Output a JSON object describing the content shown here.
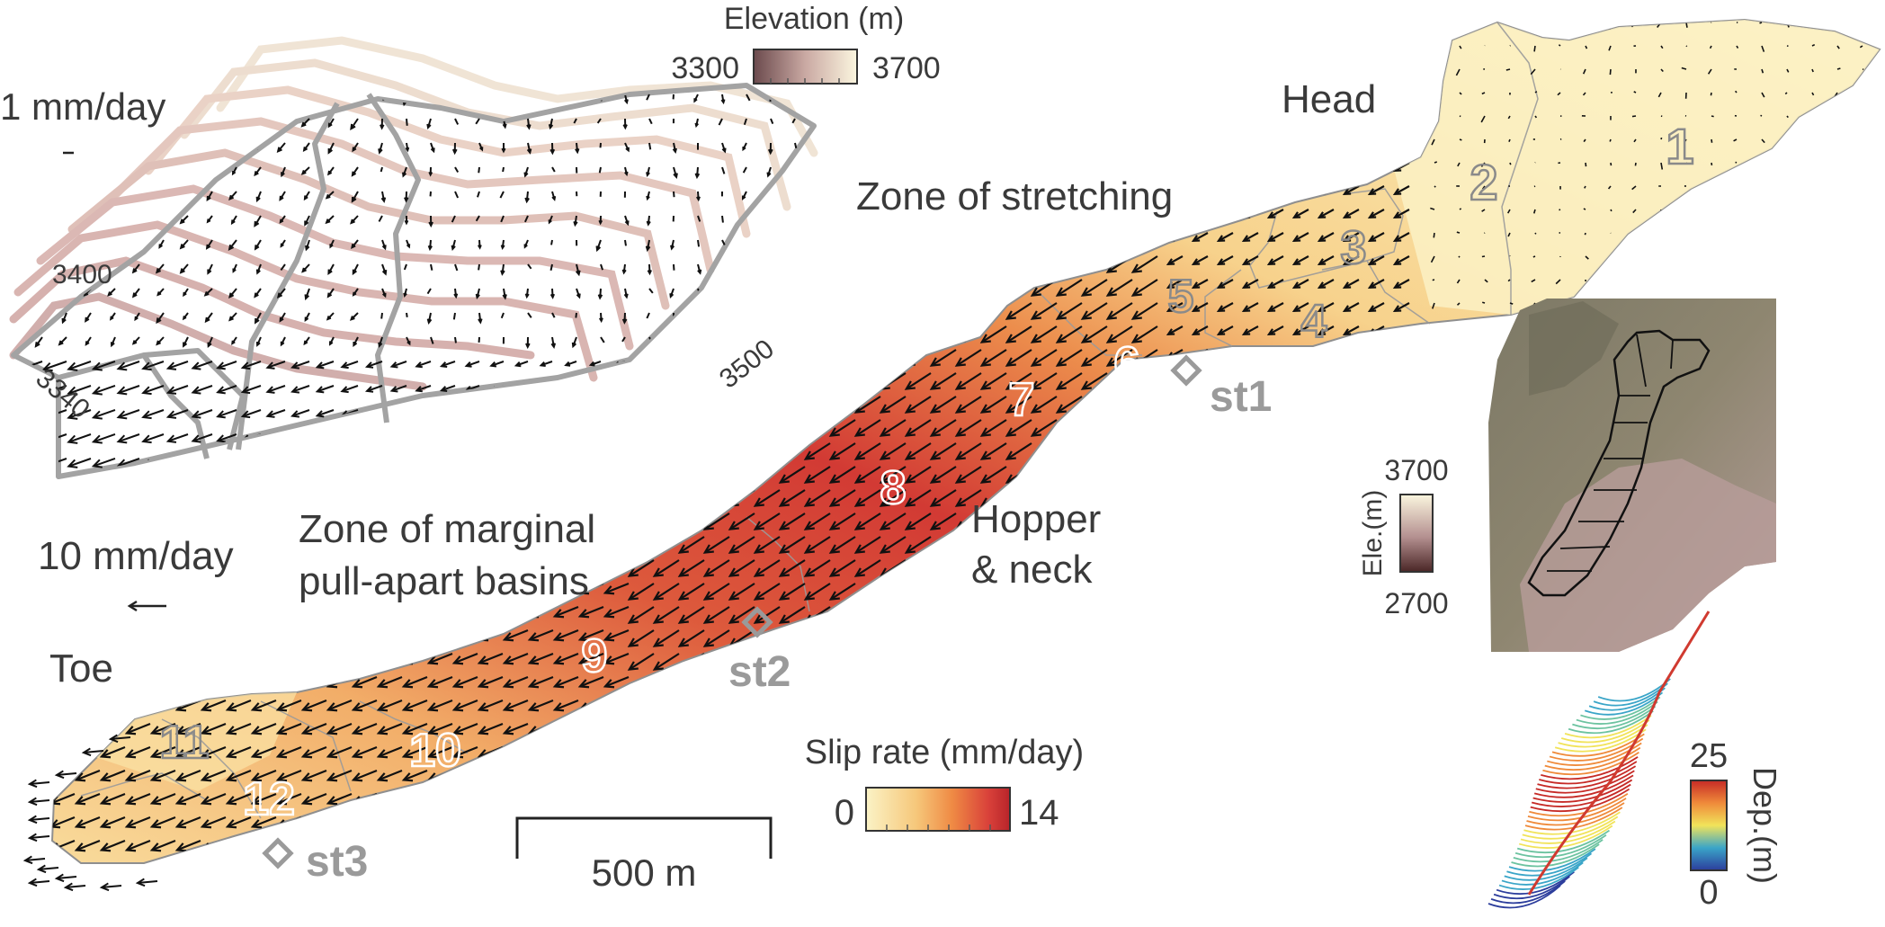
{
  "inset_topleft": {
    "scale_label": "1 mm/day",
    "colorbar": {
      "title": "Elevation (m)",
      "min_label": "3300",
      "max_label": "3700"
    },
    "contour_labels": [
      "3400",
      "3340",
      "3500"
    ]
  },
  "main_map": {
    "zone_labels": {
      "head": "Head",
      "stretching": "Zone of stretching",
      "hopper_1": "Hopper",
      "hopper_2": "& neck",
      "marginal_1": "Zone of marginal",
      "marginal_2": "pull-apart basins",
      "toe": "Toe"
    },
    "scale_arrow_label": "10 mm/day",
    "segment_numbers": [
      "1",
      "2",
      "3",
      "4",
      "5",
      "6",
      "7",
      "8",
      "9",
      "10",
      "11",
      "12"
    ],
    "stations": [
      "st1",
      "st2",
      "st3"
    ],
    "slip_colorbar": {
      "title": "Slip rate (mm/day)",
      "min_label": "0",
      "max_label": "14"
    },
    "scalebar_label": "500 m"
  },
  "inset_terrain": {
    "colorbar": {
      "title": "Ele.(m)",
      "max_label": "3700",
      "min_label": "2700"
    }
  },
  "inset_depth": {
    "colorbar": {
      "title": "Dep.(m)",
      "max_label": "25",
      "min_label": "0"
    }
  },
  "colors": {
    "slip_low": "#fbf3c6",
    "slip_mid": "#f4a24a",
    "slip_high": "#c42a26",
    "elev_low": "#6b4a4d",
    "elev_high": "#fbf6df",
    "station_gray": "#9a9a9a"
  }
}
